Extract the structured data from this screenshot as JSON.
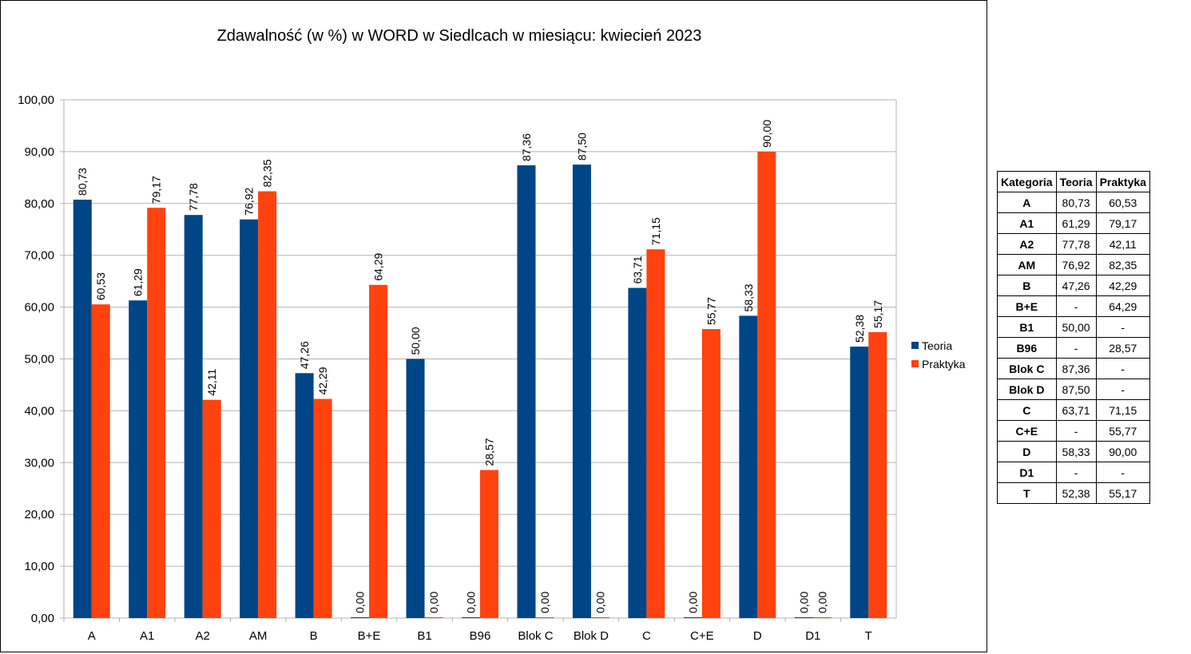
{
  "chart_data": {
    "type": "bar",
    "title": "Zdawalność (w %) w WORD w Siedlcach w miesiącu: kwiecień 2023",
    "categories": [
      "A",
      "A1",
      "A2",
      "AM",
      "B",
      "B+E",
      "B1",
      "B96",
      "Blok C",
      "Blok D",
      "C",
      "C+E",
      "D",
      "D1",
      "T"
    ],
    "series": [
      {
        "name": "Teoria",
        "color": "#004586",
        "values": [
          80.73,
          61.29,
          77.78,
          76.92,
          47.26,
          0.0,
          50.0,
          0.0,
          87.36,
          87.5,
          63.71,
          0.0,
          58.33,
          0.0,
          52.38
        ],
        "labels": [
          "80,73",
          "61,29",
          "77,78",
          "76,92",
          "47,26",
          "0,00",
          "50,00",
          "0,00",
          "87,36",
          "87,50",
          "63,71",
          "0,00",
          "58,33",
          "0,00",
          "52,38"
        ]
      },
      {
        "name": "Praktyka",
        "color": "#ff420e",
        "values": [
          60.53,
          79.17,
          42.11,
          82.35,
          42.29,
          64.29,
          0.0,
          28.57,
          0.0,
          0.0,
          71.15,
          55.77,
          90.0,
          0.0,
          55.17
        ],
        "labels": [
          "60,53",
          "79,17",
          "42,11",
          "82,35",
          "42,29",
          "64,29",
          "0,00",
          "28,57",
          "0,00",
          "0,00",
          "71,15",
          "55,77",
          "90,00",
          "0,00",
          "55,17"
        ]
      }
    ],
    "ylim": [
      0,
      100
    ],
    "yticks": [
      "0,00",
      "10,00",
      "20,00",
      "30,00",
      "40,00",
      "50,00",
      "60,00",
      "70,00",
      "80,00",
      "90,00",
      "100,00"
    ],
    "grid": true,
    "legend": "right"
  },
  "table": {
    "headers": [
      "Kategoria",
      "Teoria",
      "Praktyka"
    ],
    "rows": [
      [
        "A",
        "80,73",
        "60,53"
      ],
      [
        "A1",
        "61,29",
        "79,17"
      ],
      [
        "A2",
        "77,78",
        "42,11"
      ],
      [
        "AM",
        "76,92",
        "82,35"
      ],
      [
        "B",
        "47,26",
        "42,29"
      ],
      [
        "B+E",
        "-",
        "64,29"
      ],
      [
        "B1",
        "50,00",
        "-"
      ],
      [
        "B96",
        "-",
        "28,57"
      ],
      [
        "Blok C",
        "87,36",
        "-"
      ],
      [
        "Blok D",
        "87,50",
        "-"
      ],
      [
        "C",
        "63,71",
        "71,15"
      ],
      [
        "C+E",
        "-",
        "55,77"
      ],
      [
        "D",
        "58,33",
        "90,00"
      ],
      [
        "D1",
        "-",
        "-"
      ],
      [
        "T",
        "52,38",
        "55,17"
      ]
    ]
  }
}
